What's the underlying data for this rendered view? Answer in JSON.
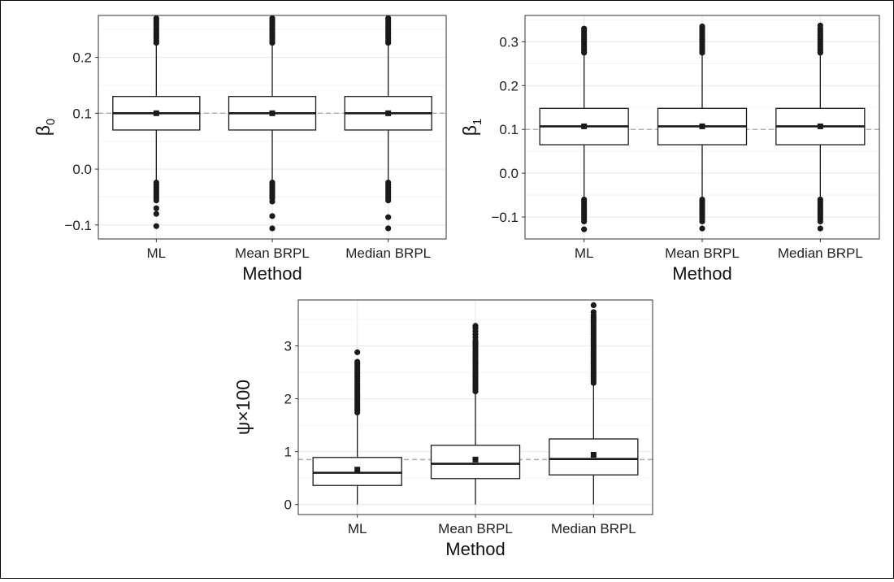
{
  "figure": {
    "border_color": "#000000",
    "panel_border_color": "#333333",
    "grid_major_color": "#ebebeb",
    "grid_minor_color": "#f3f3f3",
    "reference_line_color": "#aaaaaa",
    "ink_color": "#1a1a1a"
  },
  "chart_data": [
    {
      "type": "box",
      "xlabel": "Method",
      "ylabel_symbol": "β",
      "ylabel_subscript": "0",
      "categories": [
        "ML",
        "Mean BRPL",
        "Median BRPL"
      ],
      "ylim": [
        -0.125,
        0.275
      ],
      "yticks": [
        -0.1,
        0.0,
        0.1,
        0.2
      ],
      "ytick_labels": [
        "−0.1",
        "0.0",
        "0.1",
        "0.2"
      ],
      "reference_line": 0.1,
      "series": [
        {
          "category": "ML",
          "whisker_low": -0.021,
          "q1": 0.07,
          "median": 0.1,
          "q3": 0.13,
          "whisker_high": 0.222,
          "mean": 0.1,
          "outliers_high": [
            0.226,
            0.23,
            0.234,
            0.238,
            0.242,
            0.246,
            0.25,
            0.254,
            0.258,
            0.262,
            0.266,
            0.27
          ],
          "outliers_low": [
            -0.024,
            -0.028,
            -0.032,
            -0.036,
            -0.04,
            -0.044,
            -0.048,
            -0.052,
            -0.056,
            -0.07,
            -0.08,
            -0.102
          ]
        },
        {
          "category": "Mean BRPL",
          "whisker_low": -0.021,
          "q1": 0.07,
          "median": 0.1,
          "q3": 0.13,
          "whisker_high": 0.222,
          "mean": 0.1,
          "outliers_high": [
            0.226,
            0.23,
            0.234,
            0.238,
            0.242,
            0.246,
            0.25,
            0.254,
            0.258,
            0.262,
            0.266,
            0.27
          ],
          "outliers_low": [
            -0.024,
            -0.028,
            -0.032,
            -0.036,
            -0.04,
            -0.044,
            -0.048,
            -0.052,
            -0.058,
            -0.084,
            -0.106
          ]
        },
        {
          "category": "Median BRPL",
          "whisker_low": -0.021,
          "q1": 0.07,
          "median": 0.1,
          "q3": 0.13,
          "whisker_high": 0.222,
          "mean": 0.1,
          "outliers_high": [
            0.226,
            0.23,
            0.234,
            0.238,
            0.242,
            0.246,
            0.25,
            0.254,
            0.258,
            0.262,
            0.266,
            0.27
          ],
          "outliers_low": [
            -0.024,
            -0.028,
            -0.032,
            -0.036,
            -0.04,
            -0.044,
            -0.048,
            -0.052,
            -0.056,
            -0.086,
            -0.106
          ]
        }
      ]
    },
    {
      "type": "box",
      "xlabel": "Method",
      "ylabel_symbol": "β",
      "ylabel_subscript": "1",
      "categories": [
        "ML",
        "Mean BRPL",
        "Median BRPL"
      ],
      "ylim": [
        -0.15,
        0.36
      ],
      "yticks": [
        -0.1,
        0.0,
        0.1,
        0.2,
        0.3
      ],
      "ytick_labels": [
        "−0.1",
        "0.0",
        "0.1",
        "0.2",
        "0.3"
      ],
      "reference_line": 0.1,
      "series": [
        {
          "category": "ML",
          "whisker_low": -0.055,
          "q1": 0.065,
          "median": 0.107,
          "q3": 0.148,
          "whisker_high": 0.27,
          "mean": 0.107,
          "outliers_high": [
            0.275,
            0.28,
            0.285,
            0.29,
            0.295,
            0.3,
            0.305,
            0.31,
            0.315,
            0.32,
            0.325,
            0.33
          ],
          "outliers_low": [
            -0.06,
            -0.065,
            -0.07,
            -0.075,
            -0.08,
            -0.085,
            -0.09,
            -0.095,
            -0.1,
            -0.105,
            -0.11,
            -0.128
          ]
        },
        {
          "category": "Mean BRPL",
          "whisker_low": -0.055,
          "q1": 0.065,
          "median": 0.107,
          "q3": 0.148,
          "whisker_high": 0.27,
          "mean": 0.107,
          "outliers_high": [
            0.275,
            0.28,
            0.285,
            0.29,
            0.295,
            0.3,
            0.305,
            0.31,
            0.315,
            0.32,
            0.325,
            0.33,
            0.335
          ],
          "outliers_low": [
            -0.06,
            -0.065,
            -0.07,
            -0.075,
            -0.08,
            -0.085,
            -0.09,
            -0.095,
            -0.1,
            -0.105,
            -0.11,
            -0.126
          ]
        },
        {
          "category": "Median BRPL",
          "whisker_low": -0.055,
          "q1": 0.065,
          "median": 0.107,
          "q3": 0.148,
          "whisker_high": 0.27,
          "mean": 0.107,
          "outliers_high": [
            0.275,
            0.28,
            0.285,
            0.29,
            0.295,
            0.3,
            0.305,
            0.31,
            0.315,
            0.32,
            0.325,
            0.33,
            0.337
          ],
          "outliers_low": [
            -0.06,
            -0.065,
            -0.07,
            -0.075,
            -0.08,
            -0.085,
            -0.09,
            -0.095,
            -0.1,
            -0.105,
            -0.11,
            -0.126
          ]
        }
      ]
    },
    {
      "type": "box",
      "xlabel": "Method",
      "ylabel_symbol": "ψ×100",
      "ylabel_subscript": "",
      "categories": [
        "ML",
        "Mean BRPL",
        "Median BRPL"
      ],
      "ylim": [
        -0.19,
        3.87
      ],
      "yticks": [
        0,
        1,
        2,
        3
      ],
      "ytick_labels": [
        "0",
        "1",
        "2",
        "3"
      ],
      "reference_line": 0.85,
      "series": [
        {
          "category": "ML",
          "whisker_low": 0.0,
          "q1": 0.36,
          "median": 0.6,
          "q3": 0.89,
          "whisker_high": 1.7,
          "mean": 0.66,
          "outliers_high": [
            1.74,
            1.78,
            1.82,
            1.86,
            1.9,
            1.94,
            1.98,
            2.02,
            2.06,
            2.1,
            2.14,
            2.18,
            2.22,
            2.26,
            2.3,
            2.34,
            2.38,
            2.42,
            2.46,
            2.5,
            2.54,
            2.58,
            2.62,
            2.66,
            2.7,
            2.88
          ],
          "outliers_low": []
        },
        {
          "category": "Mean BRPL",
          "whisker_low": 0.0,
          "q1": 0.49,
          "median": 0.77,
          "q3": 1.12,
          "whisker_high": 2.1,
          "mean": 0.85,
          "outliers_high": [
            2.14,
            2.18,
            2.22,
            2.26,
            2.3,
            2.34,
            2.38,
            2.42,
            2.46,
            2.5,
            2.54,
            2.58,
            2.62,
            2.66,
            2.7,
            2.74,
            2.78,
            2.82,
            2.86,
            2.9,
            2.94,
            2.98,
            3.02,
            3.06,
            3.1,
            3.16,
            3.22,
            3.28,
            3.34,
            3.38
          ],
          "outliers_low": []
        },
        {
          "category": "Median BRPL",
          "whisker_low": 0.0,
          "q1": 0.56,
          "median": 0.86,
          "q3": 1.24,
          "whisker_high": 2.26,
          "mean": 0.94,
          "outliers_high": [
            2.3,
            2.34,
            2.38,
            2.42,
            2.46,
            2.5,
            2.54,
            2.58,
            2.62,
            2.66,
            2.7,
            2.74,
            2.78,
            2.82,
            2.86,
            2.9,
            2.94,
            2.98,
            3.02,
            3.06,
            3.1,
            3.14,
            3.18,
            3.22,
            3.26,
            3.3,
            3.34,
            3.38,
            3.42,
            3.46,
            3.5,
            3.54,
            3.58,
            3.64,
            3.77
          ],
          "outliers_low": []
        }
      ]
    }
  ]
}
